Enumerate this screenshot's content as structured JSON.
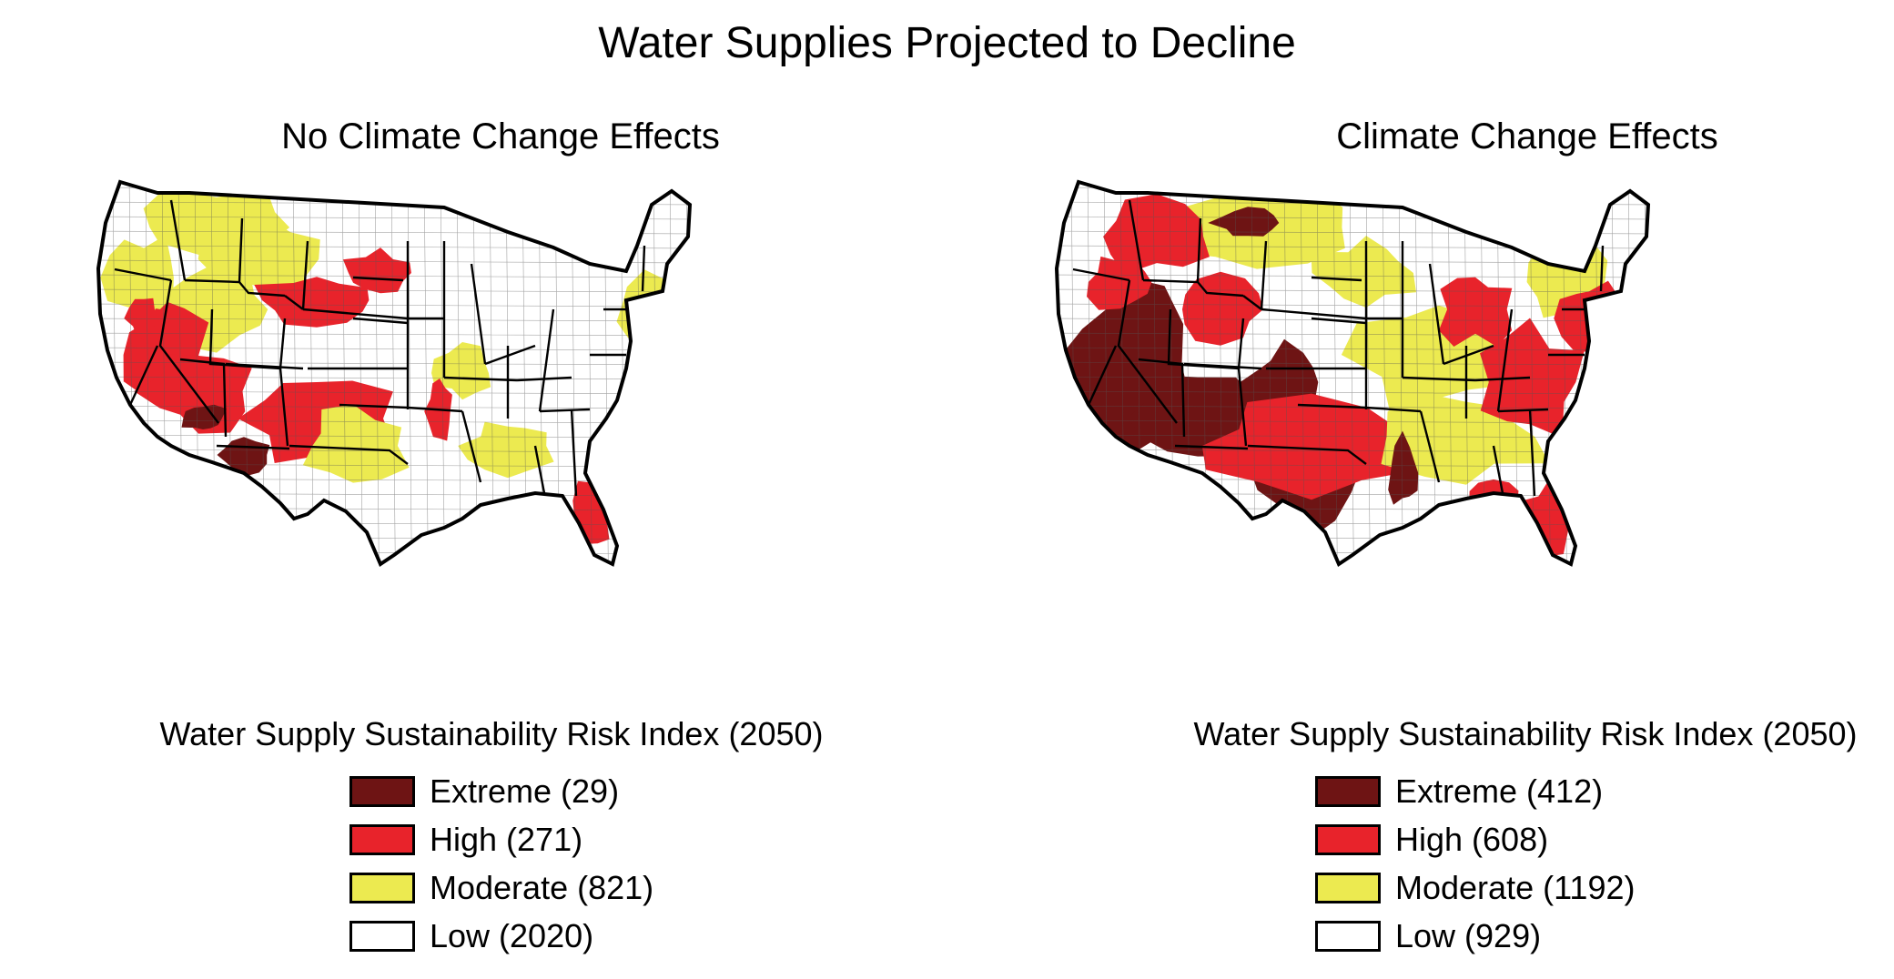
{
  "title": "Water Supplies Projected to Decline",
  "colors": {
    "extreme": "#6e1414",
    "high": "#e8232b",
    "moderate": "#ecea50",
    "low": "#ffffff",
    "border": "#000000"
  },
  "panels": [
    {
      "title": "No Climate Change Effects",
      "legend_title": "Water Supply Sustainability Risk Index (2050)",
      "legend": [
        {
          "level": "extreme",
          "label": "Extreme (29)",
          "count": 29
        },
        {
          "level": "high",
          "label": "High (271)",
          "count": 271
        },
        {
          "level": "moderate",
          "label": "Moderate (821)",
          "count": 821
        },
        {
          "level": "low",
          "label": "Low (2020)",
          "count": 2020
        }
      ]
    },
    {
      "title": "Climate Change Effects",
      "legend_title": "Water Supply Sustainability Risk Index (2050)",
      "legend": [
        {
          "level": "extreme",
          "label": "Extreme (412)",
          "count": 412
        },
        {
          "level": "high",
          "label": "High (608)",
          "count": 608
        },
        {
          "level": "moderate",
          "label": "Moderate (1192)",
          "count": 1192
        },
        {
          "level": "low",
          "label": "Low (929)",
          "count": 929
        }
      ]
    }
  ]
}
